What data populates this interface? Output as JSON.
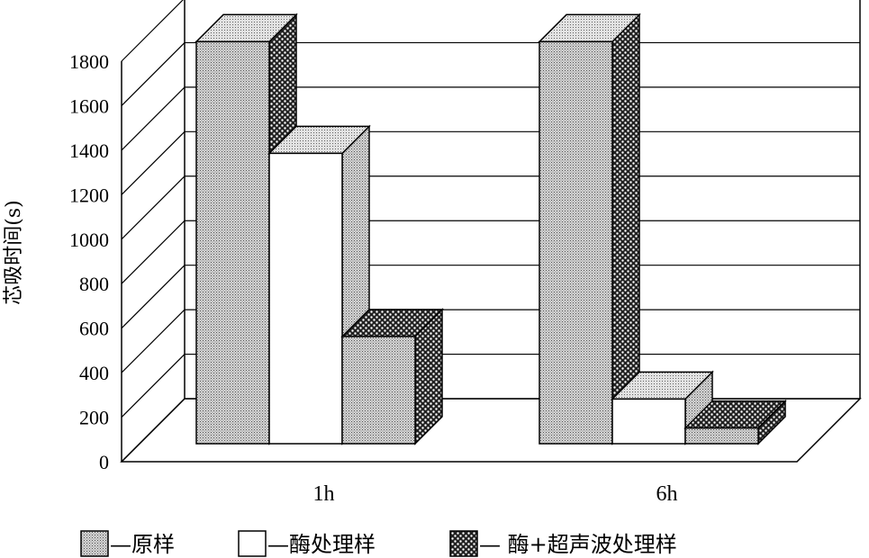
{
  "chart_data": {
    "type": "bar",
    "title": "",
    "xlabel": "",
    "ylabel": "芯吸时间(s)",
    "ylim": [
      0,
      1800
    ],
    "yticks": [
      0,
      200,
      400,
      600,
      800,
      1000,
      1200,
      1400,
      1600,
      1800
    ],
    "grid": true,
    "three_d": true,
    "legend_position": "bottom",
    "categories": [
      "1h",
      "6h"
    ],
    "series": [
      {
        "name": "原样",
        "values": [
          1800,
          1800
        ],
        "pattern": "fine-dots",
        "color": "#bdbdbd"
      },
      {
        "name": "酶处理样",
        "values": [
          1300,
          200
        ],
        "pattern": "white",
        "color": "#ffffff"
      },
      {
        "name": "酶+超声波处理样",
        "values": [
          480,
          70
        ],
        "pattern": "checker",
        "color": "#555555"
      }
    ],
    "legend": [
      {
        "prefix": "—",
        "label": "原样"
      },
      {
        "prefix": "—",
        "label": "酶处理样"
      },
      {
        "prefix": "— ",
        "label": "酶+超声波处理样"
      }
    ]
  }
}
